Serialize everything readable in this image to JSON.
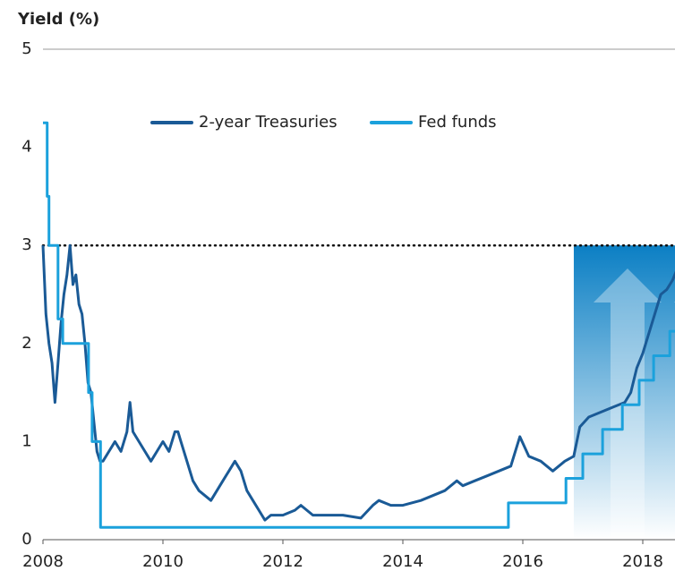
{
  "chart_data": {
    "type": "line",
    "y_label": "Yield (%)",
    "xlim": [
      2008,
      2018.6
    ],
    "xticks": [
      2008,
      2010,
      2012,
      2014,
      2016,
      2018
    ],
    "ylim": [
      0,
      5
    ],
    "yticks": [
      0,
      1,
      2,
      3,
      4,
      5
    ],
    "legend_position": "top",
    "reference_y": 3,
    "highlight": {
      "x": [
        2016.85,
        2018.6
      ],
      "y": [
        0,
        3
      ],
      "color": "#0b7fc4"
    },
    "series": [
      {
        "name": "2-year Treasuries",
        "color": "#1a5a96",
        "x": [
          2008.0,
          2008.05,
          2008.1,
          2008.15,
          2008.2,
          2008.25,
          2008.3,
          2008.35,
          2008.4,
          2008.45,
          2008.5,
          2008.55,
          2008.6,
          2008.65,
          2008.7,
          2008.75,
          2008.8,
          2008.85,
          2008.9,
          2008.95,
          2009.0,
          2009.1,
          2009.2,
          2009.3,
          2009.4,
          2009.45,
          2009.5,
          2009.6,
          2009.7,
          2009.8,
          2009.9,
          2010.0,
          2010.1,
          2010.2,
          2010.25,
          2010.3,
          2010.4,
          2010.5,
          2010.6,
          2010.7,
          2010.8,
          2010.9,
          2011.0,
          2011.1,
          2011.2,
          2011.3,
          2011.4,
          2011.5,
          2011.6,
          2011.7,
          2011.8,
          2012.0,
          2012.2,
          2012.3,
          2012.5,
          2012.7,
          2013.0,
          2013.3,
          2013.5,
          2013.6,
          2013.8,
          2014.0,
          2014.3,
          2014.5,
          2014.7,
          2014.9,
          2015.0,
          2015.2,
          2015.4,
          2015.6,
          2015.8,
          2015.95,
          2016.1,
          2016.3,
          2016.5,
          2016.7,
          2016.85,
          2016.95,
          2017.1,
          2017.3,
          2017.5,
          2017.7,
          2017.8,
          2017.9,
          2018.0,
          2018.1,
          2018.2,
          2018.3,
          2018.4,
          2018.5,
          2018.6
        ],
        "values": [
          3.0,
          2.3,
          2.0,
          1.8,
          1.4,
          1.8,
          2.2,
          2.5,
          2.7,
          3.0,
          2.6,
          2.7,
          2.4,
          2.3,
          2.0,
          1.6,
          1.5,
          1.2,
          0.9,
          0.8,
          0.8,
          0.9,
          1.0,
          0.9,
          1.1,
          1.4,
          1.1,
          1.0,
          0.9,
          0.8,
          0.9,
          1.0,
          0.9,
          1.1,
          1.1,
          1.0,
          0.8,
          0.6,
          0.5,
          0.45,
          0.4,
          0.5,
          0.6,
          0.7,
          0.8,
          0.7,
          0.5,
          0.4,
          0.3,
          0.2,
          0.25,
          0.25,
          0.3,
          0.35,
          0.25,
          0.25,
          0.25,
          0.22,
          0.35,
          0.4,
          0.35,
          0.35,
          0.4,
          0.45,
          0.5,
          0.6,
          0.55,
          0.6,
          0.65,
          0.7,
          0.75,
          1.05,
          0.85,
          0.8,
          0.7,
          0.8,
          0.85,
          1.15,
          1.25,
          1.3,
          1.35,
          1.4,
          1.5,
          1.75,
          1.9,
          2.1,
          2.3,
          2.5,
          2.55,
          2.65,
          2.8
        ]
      },
      {
        "name": "Fed funds",
        "color": "#1ba1dc",
        "x": [
          2008.0,
          2008.07,
          2008.07,
          2008.1,
          2008.1,
          2008.25,
          2008.25,
          2008.33,
          2008.33,
          2008.76,
          2008.76,
          2008.82,
          2008.82,
          2008.96,
          2008.96,
          2015.76,
          2015.76,
          2016.72,
          2016.72,
          2017.0,
          2017.0,
          2017.33,
          2017.33,
          2017.66,
          2017.66,
          2017.94,
          2017.94,
          2018.18,
          2018.18,
          2018.45,
          2018.45,
          2018.6
        ],
        "values": [
          4.25,
          4.25,
          3.5,
          3.5,
          3.0,
          3.0,
          2.25,
          2.25,
          2.0,
          2.0,
          1.5,
          1.5,
          1.0,
          1.0,
          0.125,
          0.125,
          0.375,
          0.375,
          0.625,
          0.625,
          0.875,
          0.875,
          1.125,
          1.125,
          1.375,
          1.375,
          1.625,
          1.625,
          1.875,
          1.875,
          2.125,
          2.125
        ]
      }
    ]
  }
}
